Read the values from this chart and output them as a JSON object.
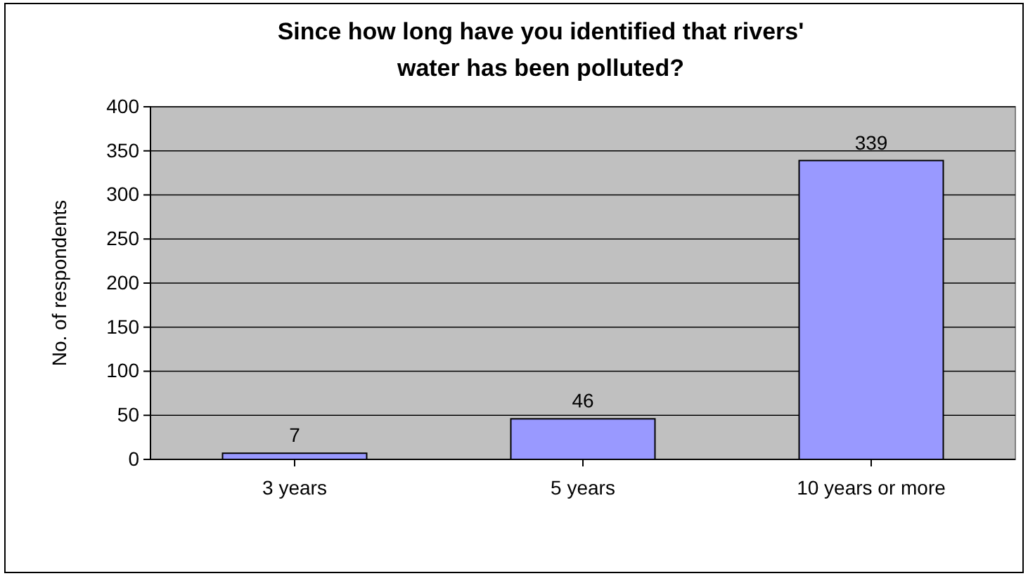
{
  "chart_data": {
    "type": "bar",
    "title": "Since how long have you identified that rivers' water has been polluted?",
    "ylabel": "No. of respondents",
    "categories": [
      "3 years",
      "5 years",
      "10 years or more"
    ],
    "values": [
      7,
      46,
      339
    ],
    "color": "#9999ff",
    "ylim": [
      0,
      400
    ],
    "yticks": [
      0,
      50,
      100,
      150,
      200,
      250,
      300,
      350,
      400
    ],
    "grid": "y",
    "data_labels": true
  }
}
